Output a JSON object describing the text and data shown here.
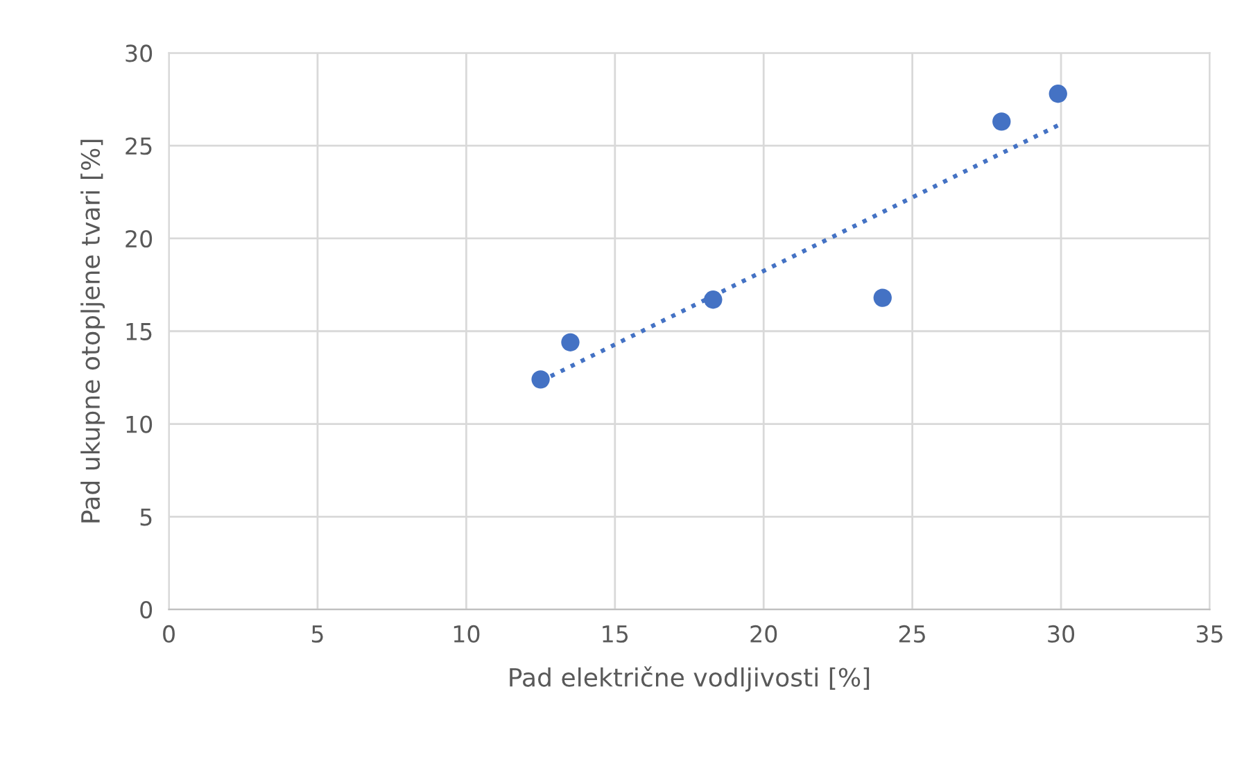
{
  "chart_data": {
    "type": "scatter",
    "xlabel": "Pad električne vodljivosti [%]",
    "ylabel": "Pad ukupne otopljene tvari [%]",
    "xlim": [
      0,
      35
    ],
    "xticks": [
      0,
      5,
      10,
      15,
      20,
      25,
      30,
      35
    ],
    "ylim": [
      0,
      30
    ],
    "yticks": [
      0,
      5,
      10,
      15,
      20,
      25,
      30
    ],
    "grid": true,
    "series": [
      {
        "marker": "circle",
        "color": "#4472c4",
        "x": [
          12.5,
          13.5,
          18.3,
          24.0,
          28.0,
          29.9
        ],
        "values": [
          12.4,
          14.4,
          16.7,
          16.8,
          26.3,
          27.8
        ]
      },
      {
        "type": "line",
        "color": "#4472c4",
        "line_style": "dotted",
        "marker": "none",
        "x": [
          12.5,
          29.9
        ],
        "values": [
          12.3,
          26.1
        ]
      }
    ]
  }
}
